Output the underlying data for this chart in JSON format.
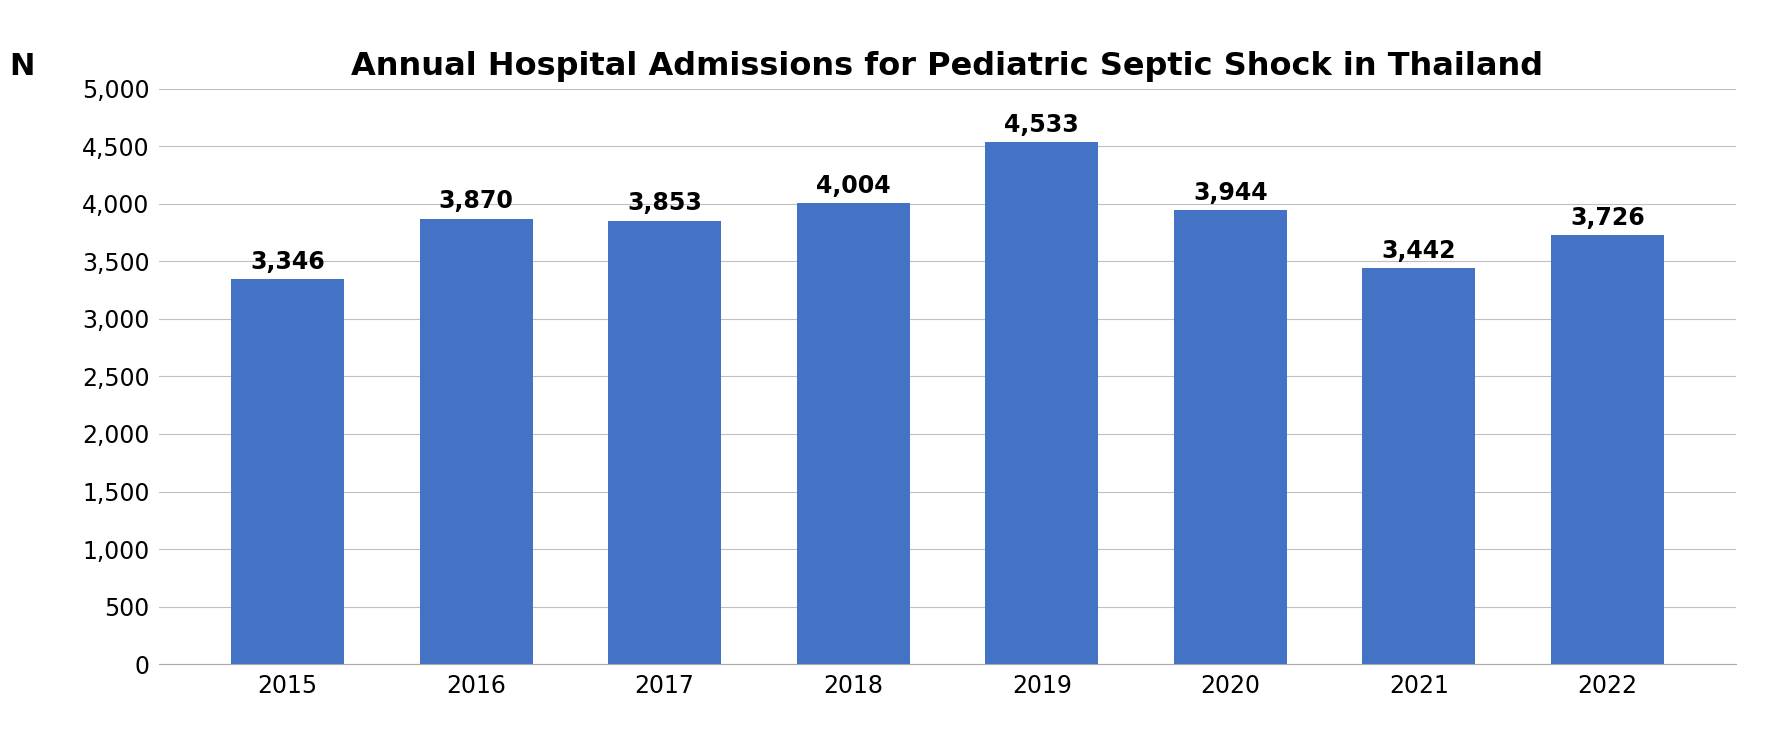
{
  "title": "Annual Hospital Admissions for Pediatric Septic Shock in Thailand",
  "n_label": "N",
  "categories": [
    2015,
    2016,
    2017,
    2018,
    2019,
    2020,
    2021,
    2022
  ],
  "values": [
    3346,
    3870,
    3853,
    4004,
    4533,
    3944,
    3442,
    3726
  ],
  "bar_color": "#4472C4",
  "ylim": [
    0,
    5000
  ],
  "yticks": [
    0,
    500,
    1000,
    1500,
    2000,
    2500,
    3000,
    3500,
    4000,
    4500,
    5000
  ],
  "background_color": "#ffffff",
  "title_fontsize": 23,
  "n_label_fontsize": 22,
  "tick_fontsize": 17,
  "annotation_fontsize": 17,
  "bar_width": 0.6
}
